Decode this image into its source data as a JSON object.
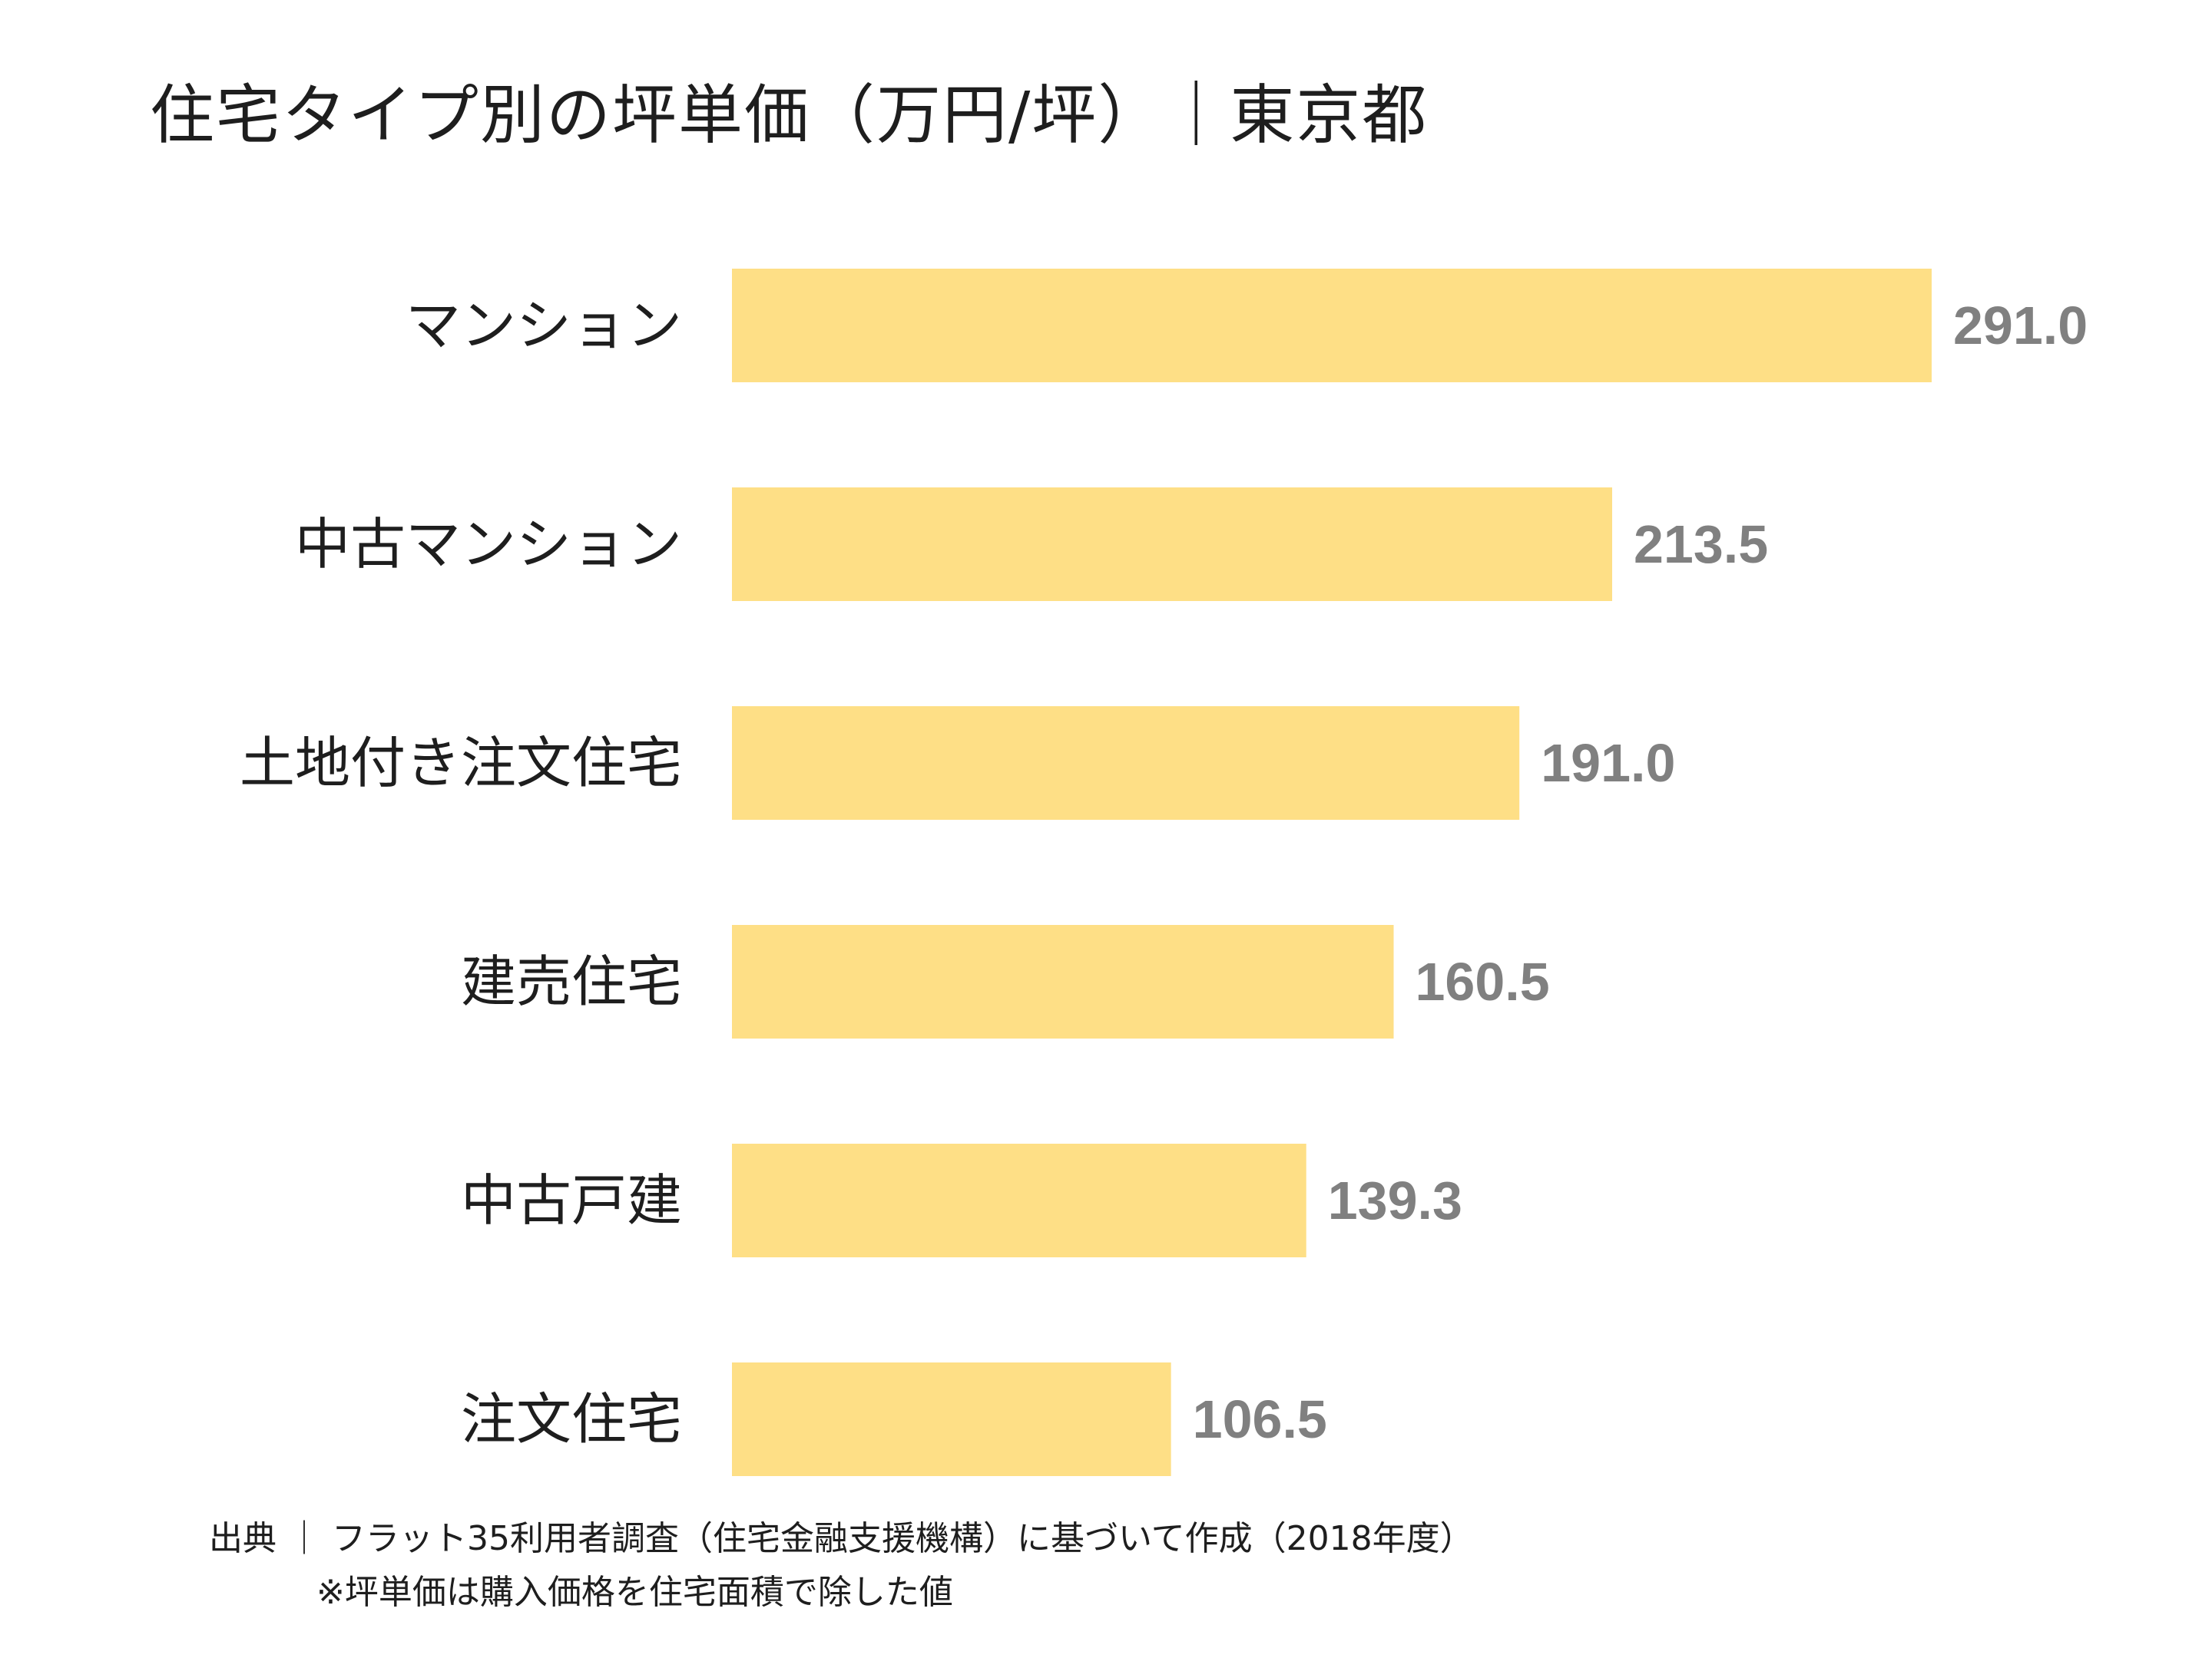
{
  "chart_data": {
    "type": "bar",
    "orientation": "horizontal",
    "title": "住宅タイプ別の坪単価（万円/坪）｜東京都",
    "categories": [
      "マンション",
      "中古マンション",
      "土地付き注文住宅",
      "建売住宅",
      "中古戸建",
      "注文住宅"
    ],
    "values": [
      291.0,
      213.5,
      191.0,
      160.5,
      139.3,
      106.5
    ],
    "value_labels": [
      "291.0",
      "213.5",
      "191.0",
      "160.5",
      "139.3",
      "106.5"
    ],
    "xlabel": "",
    "ylabel": "",
    "xlim": [
      0,
      291.0
    ],
    "grid": false,
    "legend": "none",
    "bar_color": "#FEDF86",
    "label_color": "#808080"
  },
  "footer": {
    "source": "出典 ｜ フラット35利用者調査（住宅金融支援機構）に基づいて作成（2018年度）",
    "note": "※坪単価は購入価格を住宅面積で除した値"
  }
}
